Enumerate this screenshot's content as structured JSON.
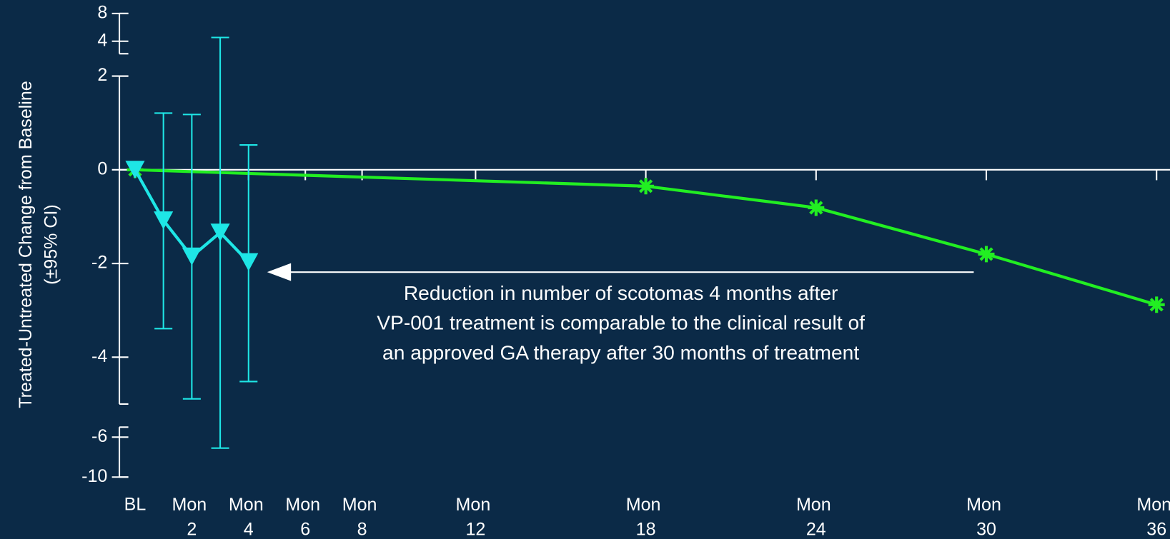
{
  "chart_data": {
    "type": "line",
    "ylabel": "Treated-Untreated Change from Baseline",
    "ylabel2": "(±95% CI)",
    "y_segments": [
      {
        "ylim": [
          2.2,
          8
        ],
        "yticks": [
          4,
          8
        ]
      },
      {
        "ylim": [
          -5,
          2
        ],
        "yticks": [
          -4,
          -2,
          0,
          2
        ]
      },
      {
        "ylim": [
          -10,
          -5
        ],
        "yticks": [
          -10,
          -6
        ]
      }
    ],
    "xlim": [
      0,
      36
    ],
    "xticks": [
      {
        "value": 0,
        "label": "BL"
      },
      {
        "value": 2,
        "label": "Mon 2"
      },
      {
        "value": 4,
        "label": "Mon 4"
      },
      {
        "value": 6,
        "label": "Mon 6"
      },
      {
        "value": 8,
        "label": "Mon 8"
      },
      {
        "value": 12,
        "label": "Mon 12"
      },
      {
        "value": 18,
        "label": "Mon 18"
      },
      {
        "value": 24,
        "label": "Mon 24"
      },
      {
        "value": 30,
        "label": "Mon 30"
      },
      {
        "value": 36,
        "label": "Mon 36"
      }
    ],
    "series": [
      {
        "color": "#1ee6e6",
        "marker": "triangle-down",
        "x": [
          0,
          1,
          2,
          3,
          4
        ],
        "values": [
          0,
          -1.08,
          -1.85,
          -1.34,
          -1.97
        ],
        "ci_low": [
          null,
          -3.39,
          -4.89,
          -7.1,
          -4.52
        ],
        "ci_high": [
          null,
          1.21,
          1.18,
          4.54,
          0.53
        ]
      },
      {
        "color": "#22ee22",
        "marker": "star",
        "x": [
          0,
          18,
          24,
          30,
          36
        ],
        "values": [
          0,
          -0.35,
          -0.81,
          -1.8,
          -2.88
        ]
      }
    ],
    "annotation": [
      "Reduction in number of scotomas 4 months after",
      "VP-001 treatment is comparable to the clinical result of",
      "an approved GA therapy after 30 months of treatment"
    ]
  }
}
